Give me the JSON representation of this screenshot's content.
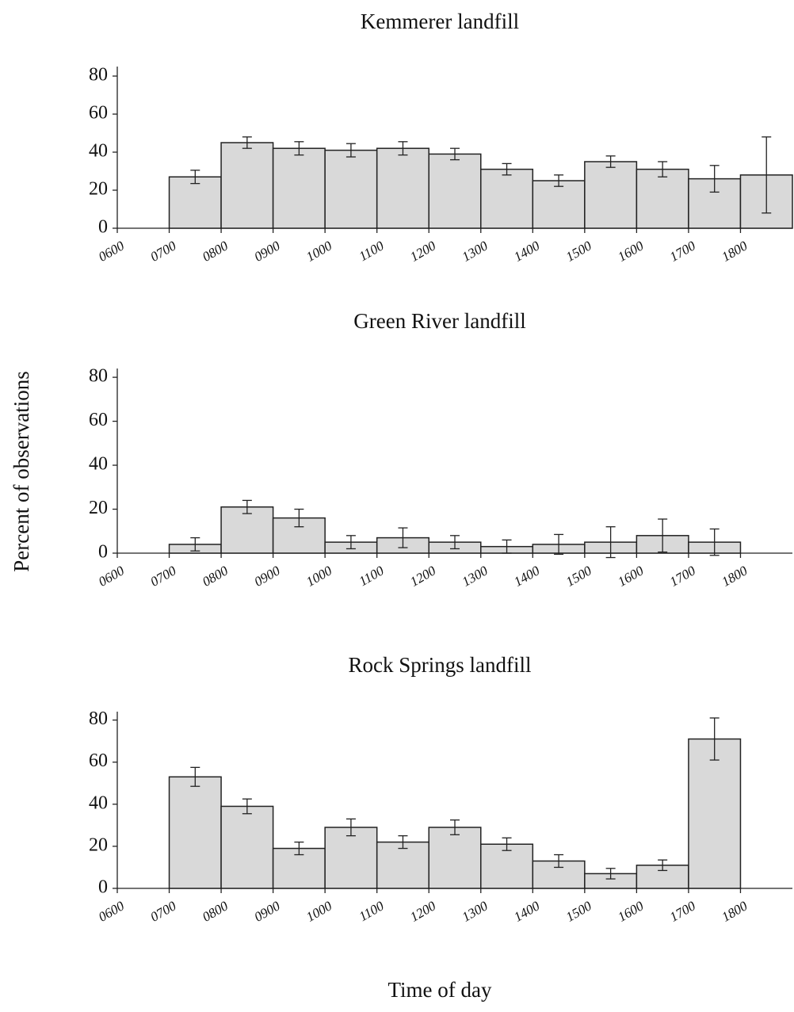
{
  "ylabel": "Percent of observations",
  "xlabel": "Time of day",
  "chart_data": [
    {
      "type": "histogram",
      "title": "Kemmerer landfill",
      "bins": [
        7,
        8,
        9,
        10,
        11,
        12,
        13,
        14,
        15,
        16,
        17,
        18,
        19
      ],
      "values": [
        27,
        45,
        42,
        41,
        42,
        39,
        31,
        25,
        35,
        31,
        26,
        28
      ],
      "errors": [
        3.5,
        3,
        3.5,
        3.5,
        3.5,
        3,
        3,
        3,
        3,
        4,
        7,
        20
      ],
      "color": "#d9d9d9",
      "grid": false,
      "xlim": [
        6,
        19
      ],
      "xticks": [
        {
          "value": 6,
          "label": "0600"
        },
        {
          "value": 7,
          "label": "0700"
        },
        {
          "value": 8,
          "label": "0800"
        },
        {
          "value": 9,
          "label": "0900"
        },
        {
          "value": 10,
          "label": "1000"
        },
        {
          "value": 11,
          "label": "1100"
        },
        {
          "value": 12,
          "label": "1200"
        },
        {
          "value": 13,
          "label": "1300"
        },
        {
          "value": 14,
          "label": "1400"
        },
        {
          "value": 15,
          "label": "1500"
        },
        {
          "value": 16,
          "label": "1600"
        },
        {
          "value": 17,
          "label": "1700"
        },
        {
          "value": 18,
          "label": "1800"
        }
      ],
      "ylim": [
        0,
        85
      ],
      "yticks": [
        0,
        20,
        40,
        60,
        80
      ]
    },
    {
      "type": "histogram",
      "title": "Green River landfill",
      "bins": [
        7,
        8,
        9,
        10,
        11,
        12,
        13,
        14,
        15,
        16,
        17,
        18
      ],
      "values": [
        4,
        21,
        16,
        5,
        7,
        5,
        3,
        4,
        5,
        8,
        5
      ],
      "errors": [
        3,
        3,
        4,
        3,
        4.5,
        3,
        3,
        4.5,
        7,
        7.5,
        6
      ],
      "color": "#d9d9d9",
      "grid": false,
      "xlim": [
        6,
        19
      ],
      "xticks": [
        {
          "value": 6,
          "label": "0600"
        },
        {
          "value": 7,
          "label": "0700"
        },
        {
          "value": 8,
          "label": "0800"
        },
        {
          "value": 9,
          "label": "0900"
        },
        {
          "value": 10,
          "label": "1000"
        },
        {
          "value": 11,
          "label": "1100"
        },
        {
          "value": 12,
          "label": "1200"
        },
        {
          "value": 13,
          "label": "1300"
        },
        {
          "value": 14,
          "label": "1400"
        },
        {
          "value": 15,
          "label": "1500"
        },
        {
          "value": 16,
          "label": "1600"
        },
        {
          "value": 17,
          "label": "1700"
        },
        {
          "value": 18,
          "label": "1800"
        }
      ],
      "ylim": [
        0,
        84
      ],
      "yticks": [
        0,
        20,
        40,
        60,
        80
      ]
    },
    {
      "type": "histogram",
      "title": "Rock Springs landfill",
      "bins": [
        7,
        8,
        9,
        10,
        11,
        12,
        13,
        14,
        15,
        16,
        17,
        18
      ],
      "values": [
        53,
        39,
        19,
        29,
        22,
        29,
        21,
        13,
        7,
        11,
        71
      ],
      "errors": [
        4.5,
        3.5,
        3,
        4,
        3,
        3.5,
        3,
        3,
        2.5,
        2.5,
        10
      ],
      "color": "#d9d9d9",
      "grid": false,
      "xlim": [
        6,
        19
      ],
      "xticks": [
        {
          "value": 6,
          "label": "0600"
        },
        {
          "value": 7,
          "label": "0700"
        },
        {
          "value": 8,
          "label": "0800"
        },
        {
          "value": 9,
          "label": "0900"
        },
        {
          "value": 10,
          "label": "1000"
        },
        {
          "value": 11,
          "label": "1100"
        },
        {
          "value": 12,
          "label": "1200"
        },
        {
          "value": 13,
          "label": "1300"
        },
        {
          "value": 14,
          "label": "1400"
        },
        {
          "value": 15,
          "label": "1500"
        },
        {
          "value": 16,
          "label": "1600"
        },
        {
          "value": 17,
          "label": "1700"
        },
        {
          "value": 18,
          "label": "1800"
        }
      ],
      "ylim": [
        0,
        84
      ],
      "yticks": [
        0,
        20,
        40,
        60,
        80
      ]
    }
  ]
}
